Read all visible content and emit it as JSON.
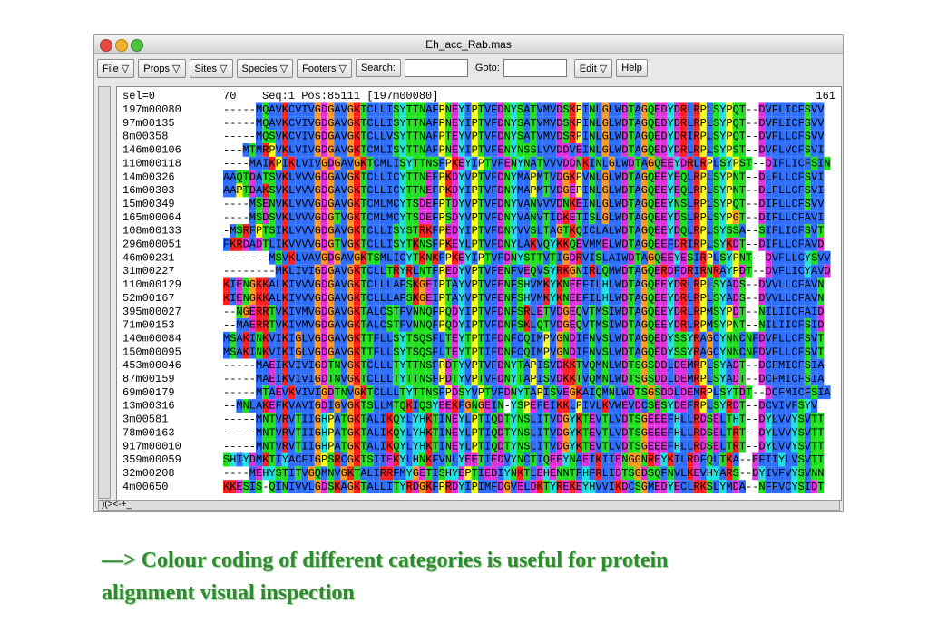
{
  "window": {
    "title": "Eh_acc_Rab.mas"
  },
  "menu": [
    "File ▽",
    "Props ▽",
    "Sites ▽",
    "Species ▽",
    "Footers ▽"
  ],
  "search_label": "Search:",
  "goto_label": "Goto:",
  "edit": "Edit ▽",
  "help": "Help",
  "header": {
    "sel": "sel=0",
    "start": "70",
    "info": "Seq:1 Pos:85111 [197m00080]",
    "end": "161"
  },
  "rows": [
    {
      "name": "197m00080",
      "seq": "-----MQAVKCVIVGDGAVGKTCLLISYTTNAFPNEYIPTVFDNYSATVMVDSKPINLGLWDTAGQEDYDRLRPLSYPQT--DVFLICFSVV"
    },
    {
      "name": "97m00135",
      "seq": "-----MQAVKCVIVGDGAVGKTCLLISYTTNAFPNEYIPTVFDNYSATVMVDSKPINLGLWDTAGQEDYDRLRPLSYPQT--DVFLICFSVV"
    },
    {
      "name": "8m00358",
      "seq": "-----MQSVKCVIVGDGAVGKTCLLVSYTTNAFPTEYVPTVFDNYSATVMVDSRPINLGLWDTAGQEDYDRIRPLSYPQT--DVFLLCFSVV"
    },
    {
      "name": "146m00106",
      "seq": "---MTMRPVKLVIVGDGAVGKTCMLISYTTNAFPNEYIPTVFENYNSSLVVDDVEINLGLWDTAGQEDYDRLRPLSYPST--DVFLVCFSVI"
    },
    {
      "name": "110m00118",
      "seq": "----MAIKPIKLVIVGDGAVGKTCMLISYTTNSFPKEYIPTVFENYNATVVVDDNKINLGLWDTAGQEEYDRLRPLSYPST--DIFLICFSIN"
    },
    {
      "name": "14m00326",
      "seq": "AAQTDATSVKLVVVGDGAVGKTCLLICYTTNEFPKDYVPTVFDNYMAPMTVDGKPVNLGLWDTAGQEEYEQLRPLSYPNT--DLFLLCFSVI"
    },
    {
      "name": "16m00303",
      "seq": "AAPTDAKSVKLVVVGDGAVGKTCLLICYTTNEFPKDYIPTVFDNYMAPMTVDGEPINLGLWDTAGQEEYEQLRPLSYPNT--DLFLLCFSVI"
    },
    {
      "name": "15m00349",
      "seq": "----MSENVKLVVVGDGAVGKTCMLMCYTSDEFPTDYVPTVFDNYVANVVVDNKEINLGLWDTAGQEEYNSLRPLSYPQT--DIFLLCFSVV"
    },
    {
      "name": "165m00064",
      "seq": "----MSDSVKLVVVGDGTVGKTCMLMCYTSDEFPSDYVPTVFDNYVANVTIDKETISLGLWDTAGQEEYDSLRPLSYPGT--DIFLLCFAVI"
    },
    {
      "name": "108m00133",
      "seq": "-MSRFPTSIKLVVVGDGAVGKTCLLISYSTRKFPEDYIPTVFDNYVVSLTAGTKQICLALWDTAGQEEYDQLRPLSYSSA--SIFLICFSVT"
    },
    {
      "name": "296m00051",
      "seq": "FKRDADTLIKVVVVGDGTVGKTCLLISYTKNSFPKEYLPTVFDNYLAKVQYKKQEVMMELWDTAGQEEFDRIRPLSYKDT--DIFLLCFAVD"
    },
    {
      "name": "46m00231",
      "seq": "-------MSVKLVAVGDGAVGKTSMLICYTKNKFPKEYIPTVFDNYSTTVTIGDRVISLAIWDTAGQEEYESIRPLSYPNT--DVFLLCYSVV"
    },
    {
      "name": "31m00227",
      "seq": "--------MKLIVIGDGAVGKTCLLTRYRLNTFPEDYVPTVFENFVEQVSYRKGNIRLQMWDTAGQERDFDRIRNRAYPDT--DVFLICYAVD"
    },
    {
      "name": "110m00129",
      "seq": "KIENGKKALKIVVVGDGAVGKTCLLLAFSKGEIPTAYVPTVFENFSHVMKYKNEEFILHLWDTAGQEEYDRLRPLSYADS--DVVLLCFAVN"
    },
    {
      "name": "52m00167",
      "seq": "KIENGKKALKIVVVGDGAVGKTCLLLAFSKGEIPTAYVPTVFENFSHVMKYKNEEFILHLWDTAGQEEYDRLRPLSYADS--DVVLLCFAVN"
    },
    {
      "name": "395m00027",
      "seq": "--NGERRTVKIVMVGDGAVGKTALCSTFVNNQFPQDYIPTVFDNFSRLETVDGEQVTMSIWDTAGQEEYDRLRPMSYPDT--NILIICFAID"
    },
    {
      "name": "71m00153",
      "seq": "--MAERRTVKIVMVGDGAVGKTALCSTFVNNQFPQDYIPTVFDNFSKLQTVDGEQVTMSIWDTAGQEEYDRLRPMSYPNT--NILIICFSID"
    },
    {
      "name": "140m00084",
      "seq": "MSAKINKVIKIGLVGDGAVGKTTFLLSYTSQSFLTEYTPTIFDNFCQIMPVGNDIFNVSLWDTAGQEDYSSYRAGCYNNCNFDVFLLCFSVT"
    },
    {
      "name": "150m00095",
      "seq": "MSAKINKVIKIGLVGDGAVGKTTFLLSYTSQSFLTEYTPTIFDNFCQIMPVGNDIFNVSLWDTAGQEDYSSYRAGCYNNCNFDVFLLCFSVT"
    },
    {
      "name": "453m00046",
      "seq": "-----MAEIKVIVIGDTNVGKTCLLLTYTTNSFPDTYVPTVFDNYTAPISVDKKTVQMNLWDTSGSDDLDEMRPLSYADT--DCFMICFSIA"
    },
    {
      "name": "87m00159",
      "seq": "-----MAEIKVIVIGDTNVGKTCLLLTYTTNSFPDTYVPTVFDNYTAPISVDKKTVQMNLWDTSGSDDLDEMRPLSYADT--DCFMICFSIA"
    },
    {
      "name": "69m00179",
      "seq": "-----MTAEVKVIVIGDTNVGKTCLLLTYTTNSFPDSYVPTVFDNYTAPISVEGKAIQMNLWDTSGSDDLDEMRPLSYTDT--DCFMICFSIA"
    },
    {
      "name": "13m00316",
      "seq": "--MNLAKEFKVAVIGDIGVGKTSLLMTQKIQSYEEKFGNGEIN-YSPEFEIKKLPIVLKVWEVDCSESYDEFRPLSYRDT--DCVIVFSYV"
    },
    {
      "name": "3m00581",
      "seq": "-----MNTVRVTIIGHPATGKTALIKQYLYHKTINEYLPTIQDTYNSLITVDGYKTEVTLVDTSGEEEFHLLRDSELTHT--DYLVVYSVTT"
    },
    {
      "name": "78m00163",
      "seq": "-----MNTVRVTIIGHPATGKTALIKQYLYHKTINEYLPTIQDTYNSLITVDGYKTEVTLVDTSGEEEFHLLRDSELTRT--DYLVVYSVTT"
    },
    {
      "name": "917m00010",
      "seq": "-----MNTVRVTIIGHPATGKTALIKQYLYHKTINEYLPTIQDTYNSLITVDGYKTEVTLVDTSGEEEFHLLRDSELTRT--DYLVVYSVTT"
    },
    {
      "name": "359m00059",
      "seq": "SHIYDMKTIYACFIGPSRCGKTSIIEKYLHNKFVNLYEETIEDVYNCTIQEEYNAEIKIIENGGNREYKILRDFQLTKA--EFIIYLVSVTT"
    },
    {
      "name": "32m00208",
      "seq": "----MEHYSTITVGQMNVGKTALIRRFMYGETISHYEPTIEDIYNKTLEHENNTFHFRLIDTSGDSQFNVLKEVHYARS--DYIVFVYSVNN"
    },
    {
      "name": "4m00650",
      "seq": "KKESIS-QINIVVLGDSKAGKTALLITYRDGKFPRDYIPIMFDGVELDKTYREKEYHVVIKDCSGMEDYECLRKSLYMDA--NFFVCYSIDT"
    }
  ],
  "residue_colors": {
    "A": "#2f6fff",
    "V": "#2f6fff",
    "L": "#2f6fff",
    "I": "#2f6fff",
    "M": "#2f6fff",
    "F": "#2f6fff",
    "W": "#2f6fff",
    "C": "#2f6fff",
    "K": "#ff2020",
    "R": "#ff2020",
    "D": "#e030e0",
    "E": "#e030e0",
    "N": "#20e020",
    "Q": "#20e020",
    "S": "#20e020",
    "T": "#20e020",
    "G": "#ff9a20",
    "P": "#ffff20",
    "H": "#20e0e0",
    "Y": "#20e0e0"
  },
  "footer": {
    "symbols": ")(><-+_"
  },
  "caption": [
    "—> Colour coding of different categories is useful for protein",
    "alignment visual inspection"
  ]
}
